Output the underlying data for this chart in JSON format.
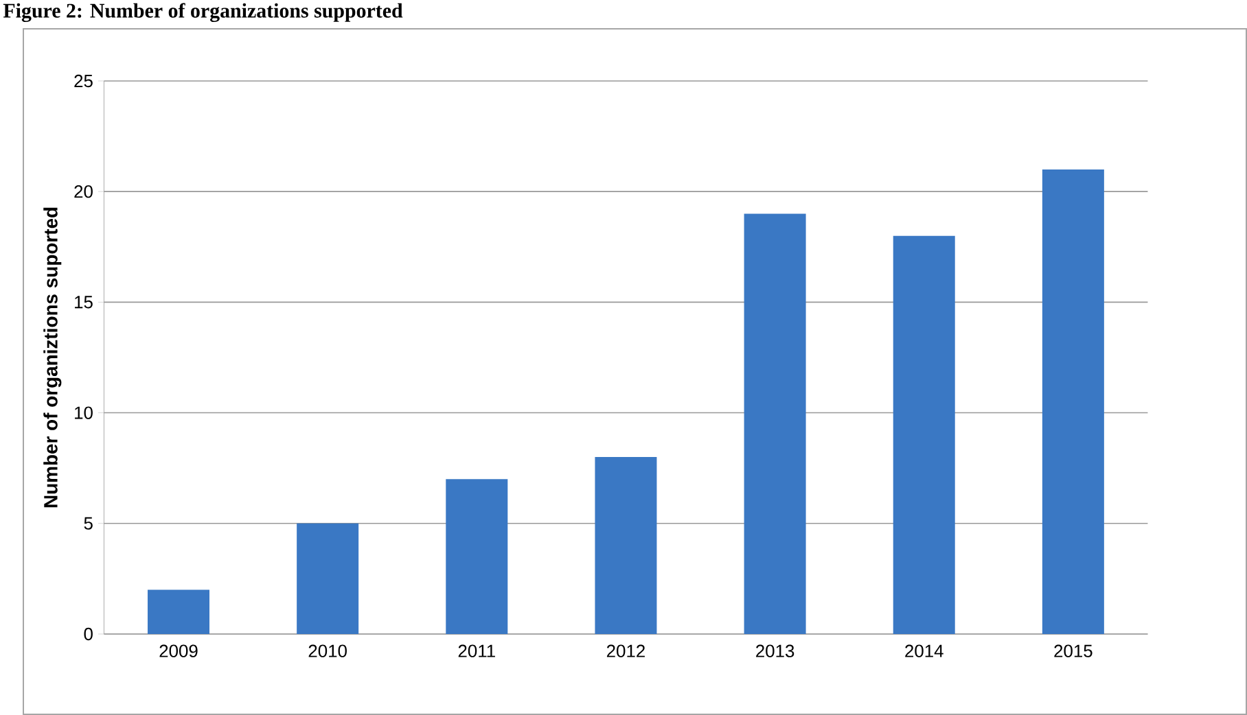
{
  "chart_data": {
    "type": "bar",
    "title": "Figure 2: Number of organizations supported",
    "ylabel": "Number of organiztions suported",
    "categories": [
      "2009",
      "2010",
      "2011",
      "2012",
      "2013",
      "2014",
      "2015"
    ],
    "values": [
      2,
      5,
      7,
      8,
      19,
      18,
      21
    ],
    "color": "#3a78c4",
    "ylim": [
      0,
      25
    ],
    "yticks": [
      0,
      5,
      10,
      15,
      20,
      25
    ],
    "grid": "y"
  }
}
